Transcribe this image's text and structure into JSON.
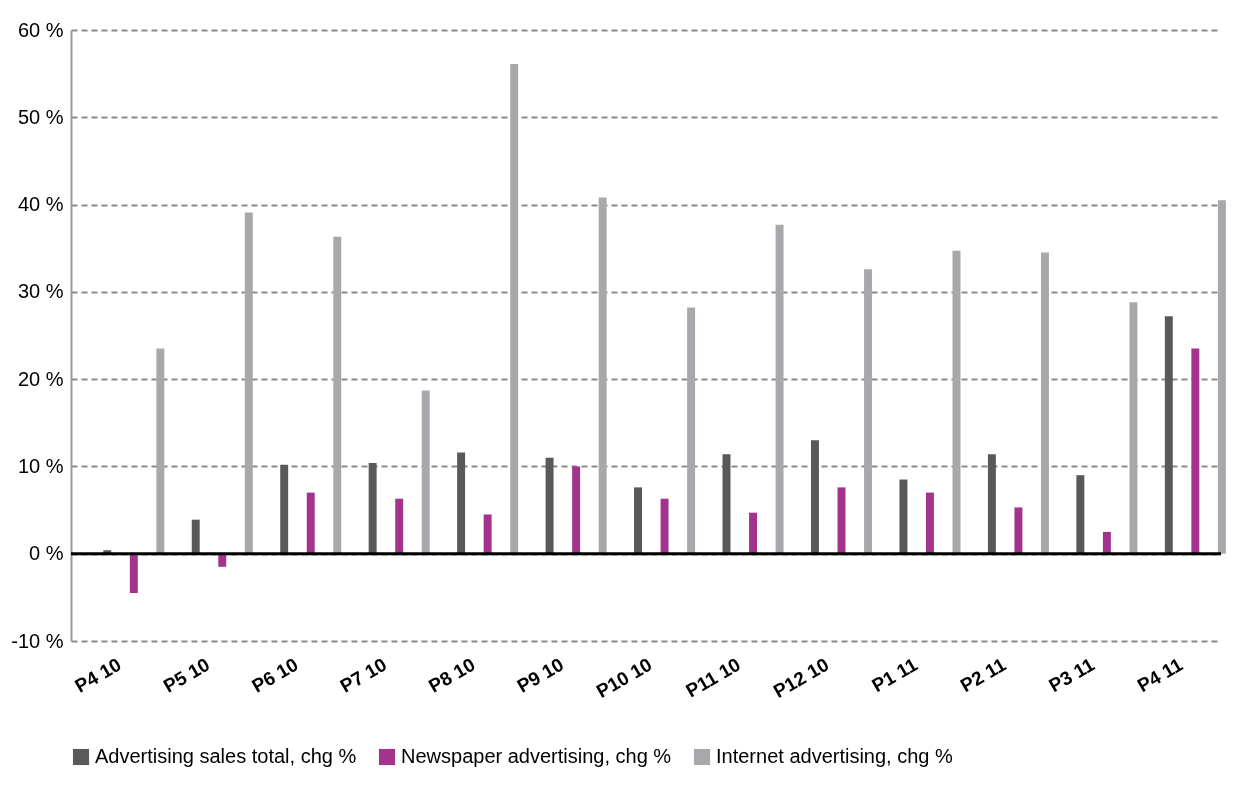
{
  "chart_data": {
    "type": "bar",
    "categories": [
      "P4 10",
      "P5 10",
      "P6 10",
      "P7 10",
      "P8 10",
      "P9 10",
      "P10 10",
      "P11 10",
      "P12 10",
      "P1 11",
      "P2 11",
      "P3 11",
      "P4 11"
    ],
    "series": [
      {
        "name": "Advertising sales total, chg %",
        "color": "#58595b",
        "values": [
          0.4,
          3.9,
          10.2,
          10.4,
          11.6,
          11,
          7.6,
          11.4,
          13,
          8.5,
          11.4,
          9,
          27.2
        ]
      },
      {
        "name": "Newspaper advertising, chg %",
        "color": "#a3338c",
        "values": [
          -4.5,
          -1.5,
          7,
          6.3,
          4.5,
          10,
          6.3,
          4.7,
          7.6,
          7,
          5.3,
          2.5,
          23.5
        ]
      },
      {
        "name": "Internet advertising, chg %",
        "color": "#a7a8ab",
        "values": [
          23.5,
          39.1,
          36.3,
          18.7,
          56.1,
          40.8,
          28.2,
          37.7,
          32.6,
          34.7,
          34.5,
          28.8,
          40.5
        ]
      }
    ],
    "ylim": [
      -10,
      60
    ],
    "yticks": [
      {
        "value": -10,
        "label": "-10 %"
      },
      {
        "value": 0,
        "label": "0 %"
      },
      {
        "value": 10,
        "label": "10 %"
      },
      {
        "value": 20,
        "label": "20 %"
      },
      {
        "value": 30,
        "label": "30 %"
      },
      {
        "value": 40,
        "label": "40 %"
      },
      {
        "value": 50,
        "label": "50 %"
      },
      {
        "value": 60,
        "label": "60 %"
      }
    ],
    "grid": "y",
    "legend": "bottom",
    "ref_lines": [
      {
        "axis": "y",
        "value": 0,
        "color": "#000000"
      }
    ]
  }
}
